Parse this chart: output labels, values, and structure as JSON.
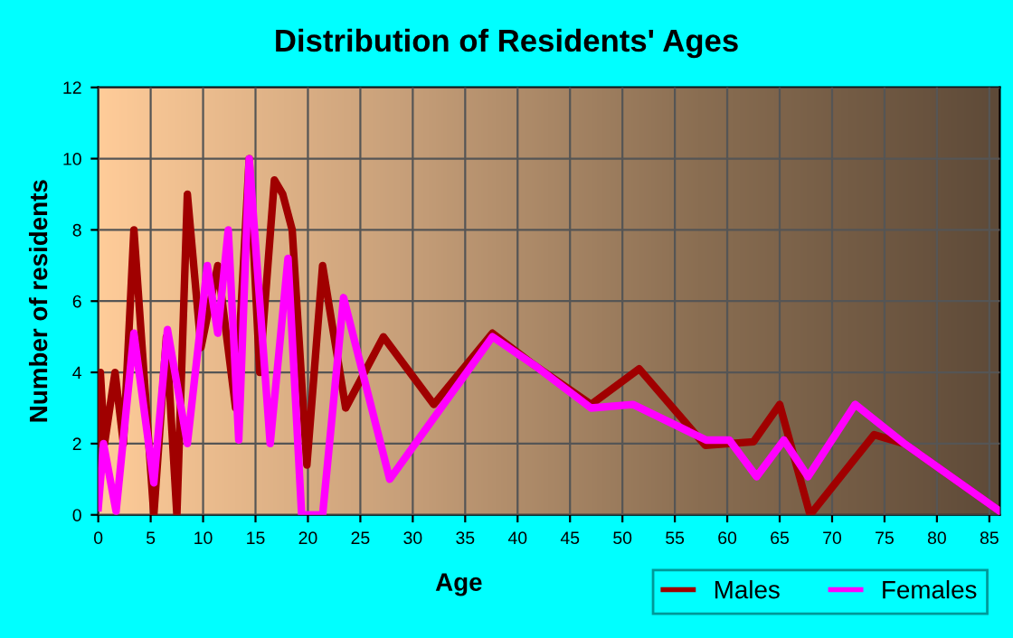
{
  "chart_data": {
    "type": "line",
    "title": "Distribution of Residents' Ages",
    "xlabel": "Age",
    "ylabel": "Number of residents",
    "xlim": [
      0,
      86
    ],
    "xticks": [
      0,
      5,
      10,
      15,
      20,
      25,
      30,
      35,
      40,
      45,
      50,
      55,
      60,
      65,
      70,
      75,
      80,
      85
    ],
    "ylim": [
      0,
      12
    ],
    "yticks": [
      0,
      2,
      4,
      6,
      8,
      10,
      12
    ],
    "grid": true,
    "legend": "bottom right",
    "marker": "none",
    "line_style": "solid",
    "series": [
      {
        "name": "Males",
        "color": "#a00000",
        "x": [
          0,
          0.2,
          0.6,
          1.6,
          2.4,
          3.4,
          5.3,
          6.5,
          7.5,
          8.5,
          9.8,
          11.4,
          13.1,
          14.4,
          15.4,
          16.8,
          17.6,
          18.5,
          19.9,
          21.4,
          23.6,
          27.2,
          32,
          37.6,
          41.6,
          47,
          51.6,
          57.9,
          62.5,
          65,
          67.9,
          74,
          76.9,
          86
        ],
        "values": [
          2,
          4,
          2,
          4,
          2,
          8,
          0,
          5,
          0,
          9,
          4.7,
          7,
          3,
          10,
          4,
          9.4,
          9,
          8,
          1.4,
          7,
          3,
          5,
          3.1,
          5.1,
          4.2,
          3.1,
          4.1,
          1.95,
          2.05,
          3.1,
          0,
          2.25,
          2,
          0.1
        ]
      },
      {
        "name": "Females",
        "color": "#ff00ff",
        "x": [
          0,
          0.5,
          1.7,
          3.4,
          5.3,
          6.6,
          8.5,
          10.4,
          11.4,
          12.4,
          13.4,
          14.4,
          16.4,
          18.1,
          19.4,
          21.4,
          23.4,
          27.8,
          37.6,
          41.6,
          47,
          51,
          58,
          60.2,
          62.8,
          65.4,
          67.7,
          72.2,
          76.9,
          86
        ],
        "values": [
          0.2,
          2,
          0.1,
          5.1,
          0.9,
          5.2,
          2,
          7,
          5.1,
          8,
          2.1,
          10,
          2,
          7.2,
          0,
          0,
          6.1,
          1,
          5,
          4.2,
          3,
          3.1,
          2.1,
          2.1,
          1.07,
          2.1,
          1.07,
          3.1,
          2,
          0.1
        ]
      }
    ]
  }
}
